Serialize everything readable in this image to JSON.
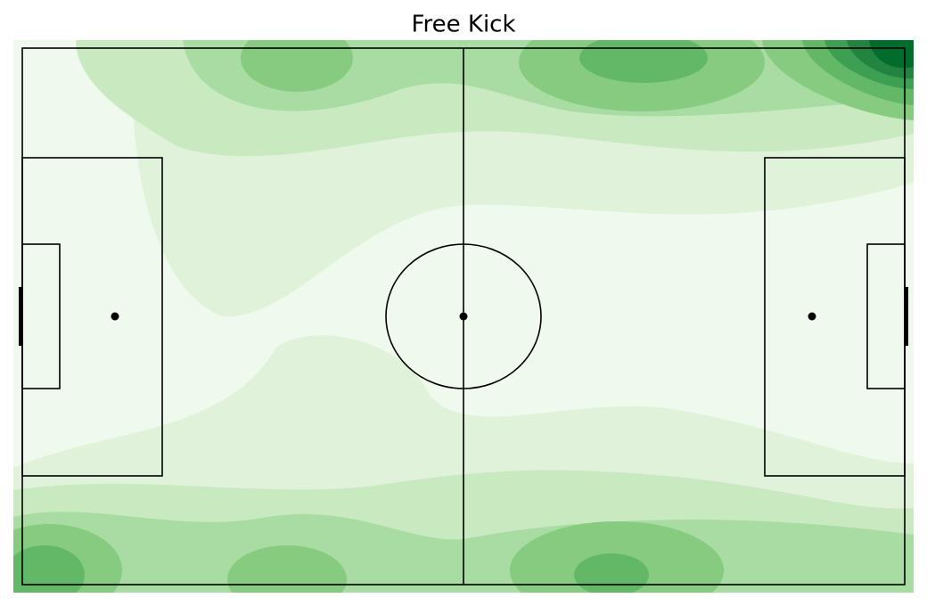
{
  "chart_data": {
    "type": "kde",
    "title": "Free Kick"
  }
}
